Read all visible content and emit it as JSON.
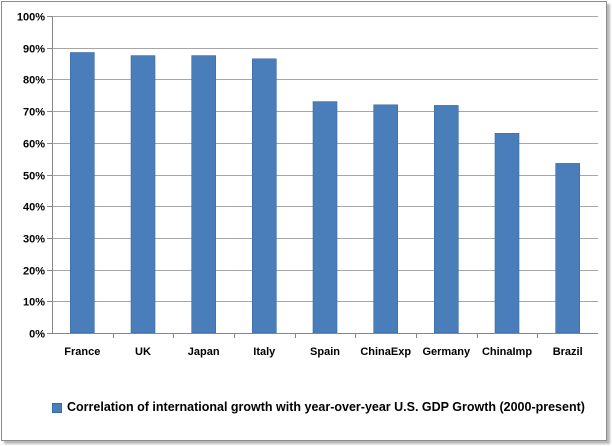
{
  "chart_data": {
    "type": "bar",
    "categories": [
      "France",
      "UK",
      "Japan",
      "Italy",
      "Spain",
      "ChinaExp",
      "Germany",
      "ChinaImp",
      "Brazil"
    ],
    "series": [
      {
        "name": "Correlation of international growth with year-over-year U.S. GDP Growth (2000-present)",
        "values": [
          88.5,
          87.5,
          87.5,
          86.5,
          73,
          72,
          71.8,
          63,
          53.5
        ],
        "color": "#4a7ebb"
      }
    ],
    "ylim": [
      0,
      100
    ],
    "yticks": [
      0,
      10,
      20,
      30,
      40,
      50,
      60,
      70,
      80,
      90,
      100
    ],
    "ytick_labels": [
      "0%",
      "10%",
      "20%",
      "30%",
      "40%",
      "50%",
      "60%",
      "70%",
      "80%",
      "90%",
      "100%"
    ],
    "grid": true,
    "legend_position": "bottom"
  },
  "colors": {
    "bar_fill": "#4a7ebb",
    "bar_edge": "#3a6aa5",
    "gridline": "#a6a6a6",
    "axis": "#868686"
  }
}
